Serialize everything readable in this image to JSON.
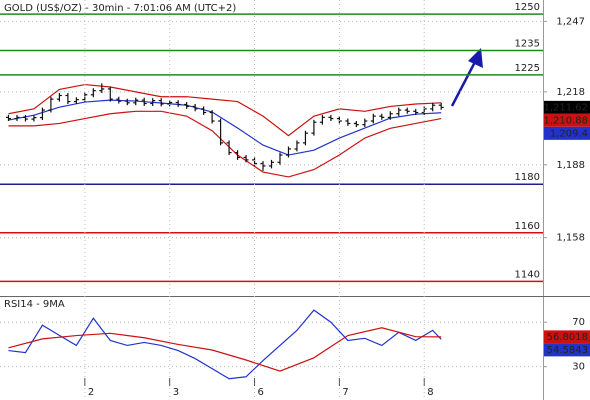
{
  "chart_data": [
    {
      "type": "ohlc",
      "title": "GOLD (US$/OZ) - 30min - 7:01:06 AM (UTC+2)",
      "xlim": [
        0,
        64
      ],
      "ylim": [
        1134.4,
        1255.8
      ],
      "yticks": [
        {
          "value": 1247,
          "label": "1,247"
        },
        {
          "value": 1218,
          "label": "1,218"
        },
        {
          "value": 1188,
          "label": "1,188"
        },
        {
          "value": 1158,
          "label": "1,158"
        }
      ],
      "x": [
        1,
        2,
        3,
        4,
        5,
        6,
        7,
        8,
        9,
        10,
        11,
        12,
        13,
        14,
        15,
        16,
        17,
        18,
        19,
        20,
        21,
        22,
        23,
        24,
        25,
        26,
        27,
        28,
        29,
        30,
        31,
        32,
        33,
        34,
        35,
        36,
        37,
        38,
        39,
        40,
        41,
        42,
        43,
        44,
        45,
        46,
        47,
        48,
        49,
        50,
        51,
        52
      ],
      "open": [
        1207.5,
        1207.0,
        1207.5,
        1206.8,
        1207.4,
        1210.5,
        1215.0,
        1216.5,
        1214.0,
        1214.8,
        1216.8,
        1218.5,
        1219.2,
        1215.0,
        1214.2,
        1213.5,
        1214.6,
        1213.2,
        1214.4,
        1213.0,
        1213.6,
        1212.8,
        1212.0,
        1211.0,
        1209.5,
        1206.0,
        1197.0,
        1193.0,
        1191.0,
        1190.0,
        1188.5,
        1187.5,
        1189.0,
        1192.0,
        1194.5,
        1197.0,
        1201.0,
        1205.5,
        1207.5,
        1207.0,
        1206.0,
        1205.0,
        1204.5,
        1206.0,
        1208.0,
        1207.5,
        1209.0,
        1210.5,
        1210.0,
        1209.5,
        1211.0,
        1212.5
      ],
      "high": [
        1208.5,
        1208.5,
        1208.5,
        1208.4,
        1211.5,
        1216.0,
        1217.5,
        1217.5,
        1215.8,
        1217.8,
        1219.5,
        1221.5,
        1220.2,
        1216.0,
        1215.2,
        1215.6,
        1215.6,
        1215.4,
        1215.4,
        1214.6,
        1214.6,
        1213.8,
        1213.0,
        1212.0,
        1210.5,
        1207.0,
        1198.0,
        1194.0,
        1192.0,
        1191.0,
        1189.5,
        1190.0,
        1193.0,
        1195.5,
        1198.0,
        1202.0,
        1206.5,
        1208.5,
        1208.5,
        1208.0,
        1207.0,
        1206.0,
        1207.0,
        1209.0,
        1209.0,
        1210.0,
        1211.5,
        1211.5,
        1211.0,
        1212.0,
        1213.5,
        1213.5
      ],
      "low": [
        1206.0,
        1206.0,
        1205.8,
        1205.8,
        1206.4,
        1209.5,
        1214.0,
        1213.0,
        1213.0,
        1213.8,
        1215.8,
        1217.5,
        1214.0,
        1213.2,
        1212.5,
        1212.5,
        1212.2,
        1212.2,
        1212.0,
        1212.0,
        1211.8,
        1211.0,
        1210.0,
        1208.5,
        1205.0,
        1196.0,
        1192.0,
        1190.0,
        1189.0,
        1187.5,
        1185.5,
        1186.5,
        1188.0,
        1191.0,
        1193.5,
        1196.0,
        1200.0,
        1204.5,
        1206.0,
        1205.0,
        1204.0,
        1203.5,
        1203.5,
        1205.0,
        1206.5,
        1206.5,
        1208.0,
        1209.0,
        1208.5,
        1208.5,
        1210.0,
        1210.6
      ],
      "close": [
        1207.0,
        1207.5,
        1206.8,
        1207.4,
        1210.5,
        1215.0,
        1216.5,
        1214.0,
        1214.8,
        1216.8,
        1218.5,
        1219.2,
        1215.0,
        1214.2,
        1213.5,
        1214.6,
        1213.2,
        1214.4,
        1213.0,
        1213.6,
        1212.8,
        1212.0,
        1211.0,
        1209.5,
        1206.0,
        1197.0,
        1193.0,
        1191.0,
        1190.0,
        1188.5,
        1187.5,
        1189.0,
        1192.0,
        1194.5,
        1197.0,
        1201.0,
        1205.5,
        1207.5,
        1207.0,
        1206.0,
        1205.0,
        1204.5,
        1206.0,
        1208.0,
        1207.5,
        1209.0,
        1210.5,
        1210.0,
        1209.5,
        1211.0,
        1212.5,
        1211.6
      ],
      "series": [
        {
          "color": "#2233cc",
          "x": [
            1,
            4,
            7,
            10,
            13,
            16,
            19,
            22,
            25,
            28,
            31,
            34,
            37,
            40,
            43,
            46,
            49,
            52
          ],
          "values": [
            1206.4,
            1208.4,
            1211.7,
            1213.8,
            1214.6,
            1214.2,
            1213.4,
            1212.5,
            1209.7,
            1203.1,
            1196.1,
            1192.0,
            1194.0,
            1199.0,
            1203.1,
            1207.2,
            1208.8,
            1209.4
          ]
        },
        {
          "color": "#cc1111",
          "x": [
            1,
            4,
            7,
            10,
            13,
            16,
            19,
            22,
            25,
            28,
            31,
            34,
            37,
            40,
            43,
            46,
            49,
            52
          ],
          "values": [
            1209,
            1211,
            1219,
            1221,
            1220,
            1218,
            1216,
            1216,
            1215,
            1214,
            1208,
            1200,
            1208,
            1211,
            1210,
            1212,
            1213,
            1213.5
          ]
        },
        {
          "color": "#cc1111",
          "x": [
            1,
            4,
            7,
            10,
            13,
            16,
            19,
            22,
            25,
            28,
            31,
            34,
            37,
            40,
            43,
            46,
            49,
            52
          ],
          "values": [
            1204,
            1204,
            1205,
            1207,
            1209,
            1210,
            1210,
            1208,
            1202,
            1192,
            1185,
            1183,
            1186,
            1192,
            1199,
            1203,
            1205,
            1207
          ]
        }
      ],
      "levels": [
        {
          "value": 1250,
          "color": "#1b8c1b"
        },
        {
          "value": 1235,
          "color": "#1b8c1b"
        },
        {
          "value": 1225,
          "color": "#1b8c1b"
        },
        {
          "value": 1180,
          "color": "#1c1c8c"
        },
        {
          "value": 1160,
          "color": "#d01010"
        },
        {
          "value": 1140,
          "color": "#d01010"
        }
      ],
      "last_labels": [
        {
          "value": 1211.62,
          "label": "1,211.62",
          "color": "#000000"
        },
        {
          "value": 1210.88,
          "label": "1,210.88",
          "color": "#cc1111"
        },
        {
          "value": 1209.4,
          "label": "1,209.4",
          "color": "#2233cc"
        }
      ]
    },
    {
      "type": "line",
      "title": "RSI14 - 9MA",
      "xlim": [
        0,
        64
      ],
      "ylim": [
        0,
        92.7
      ],
      "yticks": [
        30,
        70
      ],
      "xticks": [
        {
          "value": 10,
          "label": "2"
        },
        {
          "value": 20,
          "label": "3"
        },
        {
          "value": 30,
          "label": "6"
        },
        {
          "value": 40,
          "label": "7"
        },
        {
          "value": 50,
          "label": "8"
        }
      ],
      "series": [
        {
          "color": "#2233cc",
          "x": [
            1,
            3,
            5,
            7,
            9,
            11,
            13,
            15,
            17,
            19,
            21,
            23,
            25,
            27,
            29,
            31,
            33,
            35,
            37,
            39,
            41,
            43,
            45,
            47,
            49,
            51,
            52
          ],
          "values": [
            44.5,
            42.7,
            67.3,
            58.2,
            49.1,
            73.6,
            53.6,
            49.1,
            51.8,
            49.1,
            44.5,
            37.3,
            28.2,
            19.1,
            20.9,
            35.5,
            49.1,
            62.7,
            80.9,
            70,
            53.6,
            55.5,
            49.1,
            60.9,
            53.6,
            62.7,
            54.5843
          ]
        },
        {
          "color": "#cc1111",
          "x": [
            1,
            5,
            9,
            13,
            17,
            21,
            25,
            29,
            33,
            37,
            41,
            45,
            49,
            52
          ],
          "values": [
            47,
            55,
            58,
            60,
            56,
            50,
            45,
            36,
            26,
            38,
            58,
            65,
            57,
            56.8018
          ]
        }
      ],
      "last_labels": [
        {
          "value": 56.8018,
          "label": "56.8018",
          "color": "#cc1111"
        },
        {
          "value": 54.5843,
          "label": "54.5843",
          "color": "#2233cc"
        }
      ]
    }
  ]
}
